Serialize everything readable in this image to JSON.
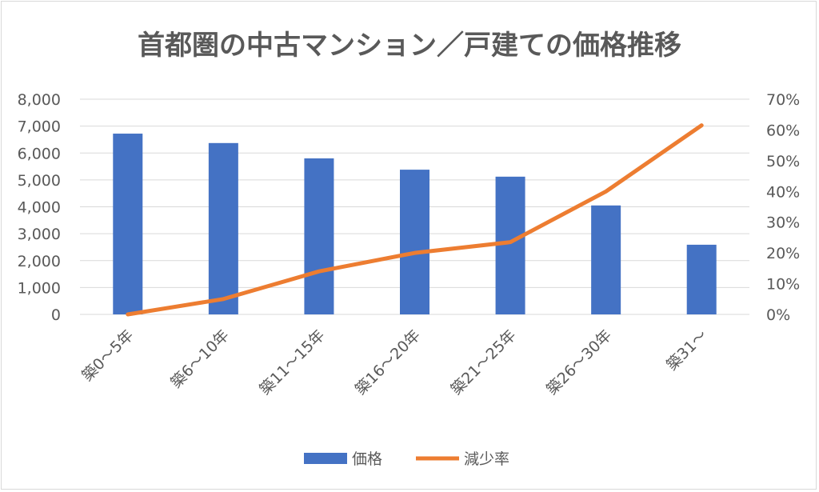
{
  "chart_data": {
    "type": "bar+line",
    "title": "首都圏の中古マンション／戸建ての価格推移",
    "categories": [
      "築0～5年",
      "築6～10年",
      "築11～15年",
      "築16～20年",
      "築21～25年",
      "築26～30年",
      "築31～"
    ],
    "series": [
      {
        "name": "価格",
        "type": "bar",
        "axis": "left",
        "color": "#4472c4",
        "values": [
          6720,
          6370,
          5800,
          5380,
          5120,
          4050,
          2590
        ]
      },
      {
        "name": "減少率",
        "type": "line",
        "axis": "right",
        "color": "#ed7d31",
        "values": [
          0.0,
          0.05,
          0.14,
          0.2,
          0.235,
          0.4,
          0.615
        ]
      }
    ],
    "y_left": {
      "min": 0,
      "max": 8000,
      "step": 1000,
      "tick_labels": [
        "0",
        "1,000",
        "2,000",
        "3,000",
        "4,000",
        "5,000",
        "6,000",
        "7,000",
        "8,000"
      ]
    },
    "y_right": {
      "min": 0,
      "max": 0.7,
      "step": 0.1,
      "tick_labels": [
        "0%",
        "10%",
        "20%",
        "30%",
        "40%",
        "50%",
        "60%",
        "70%"
      ]
    },
    "grid": true,
    "legend": {
      "position": "bottom",
      "entries": [
        "価格",
        "減少率"
      ]
    },
    "grid_color": "#d9d9d9",
    "text_color": "#595959"
  }
}
